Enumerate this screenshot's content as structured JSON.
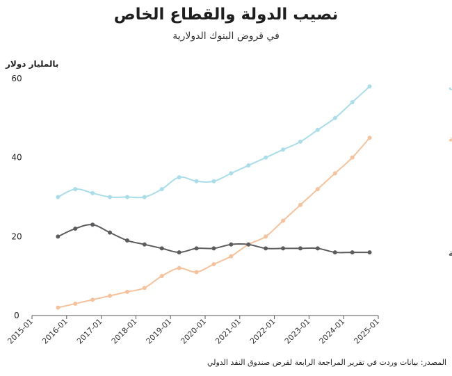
{
  "chart_data": {
    "type": "line",
    "title": "نصيب الدولة والقطاع الخاص",
    "subtitle": "في قروض البنوك الدولارية",
    "ylabel": "بالمليار دولار",
    "source": "المصدر: بيانات وردت في تقرير المراجعة الرابعة لقرض صندوق النقد الدولي",
    "ylim": [
      0,
      60
    ],
    "yticks": [
      "0",
      "20",
      "40",
      "60"
    ],
    "xlim": [
      2015,
      2025
    ],
    "xticks": [
      "2015-01",
      "2016-01",
      "2017-01",
      "2018-01",
      "2019-01",
      "2020-01",
      "2021-01",
      "2022-01",
      "2023-01",
      "2024-01",
      "2025-01"
    ],
    "grid": false,
    "x": [
      2015.75,
      2016.25,
      2016.75,
      2017.25,
      2017.75,
      2018.25,
      2018.75,
      2019.25,
      2019.75,
      2020.25,
      2020.75,
      2021.25,
      2021.75,
      2022.25,
      2022.75,
      2023.25,
      2023.75,
      2024.25,
      2024.75
    ],
    "series": [
      {
        "name": "إجمالي التمويلات",
        "color": "#a8dde9",
        "values": [
          30,
          32,
          31,
          30,
          30,
          30,
          32,
          35,
          34,
          34,
          36,
          38,
          40,
          42,
          44,
          47,
          50,
          54,
          58
        ]
      },
      {
        "name": "الدولة",
        "color": "#f6c29b",
        "values": [
          2,
          3,
          4,
          5,
          6,
          7,
          10,
          12,
          11,
          13,
          15,
          18,
          20,
          24,
          28,
          32,
          36,
          40,
          45
        ]
      },
      {
        "name": "الشركات غير المالية",
        "color": "#5c5c5e",
        "values": [
          20,
          22,
          23,
          21,
          19,
          18,
          17,
          16,
          17,
          17,
          18,
          18,
          17,
          17,
          17,
          17,
          16,
          16,
          16
        ]
      }
    ]
  }
}
